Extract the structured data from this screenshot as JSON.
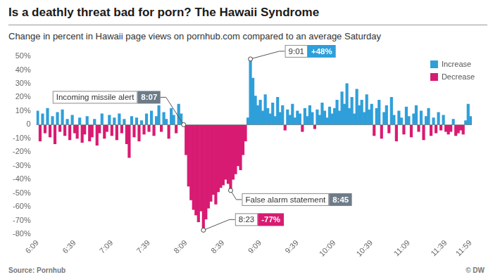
{
  "chart_data": {
    "type": "bar",
    "title": "Is a deathly threat bad for porn? The Hawaii Syndrome",
    "subtitle": "Change in percent in Hawaii page views on pornhub.com compared to an average Saturday",
    "source": "Source: Pornhub",
    "credit": "© DW",
    "categories": [
      "6:09",
      null,
      null,
      null,
      null,
      null,
      null,
      null,
      null,
      null,
      null,
      null,
      null,
      null,
      null,
      "6:39",
      null,
      null,
      null,
      null,
      null,
      null,
      null,
      null,
      null,
      null,
      null,
      null,
      null,
      null,
      "7:09",
      null,
      null,
      null,
      null,
      null,
      null,
      null,
      null,
      null,
      null,
      null,
      null,
      null,
      null,
      "7:39",
      null,
      null,
      null,
      null,
      null,
      null,
      null,
      null,
      null,
      null,
      null,
      null,
      null,
      null,
      "8:09",
      null,
      null,
      null,
      null,
      null,
      null,
      null,
      null,
      null,
      null,
      null,
      null,
      null,
      null,
      "8:39",
      null,
      null,
      null,
      null,
      null,
      null,
      null,
      null,
      null,
      null,
      null,
      null,
      null,
      null,
      "9:09",
      null,
      null,
      null,
      null,
      null,
      null,
      null,
      null,
      null,
      null,
      null,
      null,
      null,
      null,
      "9:39",
      null,
      null,
      null,
      null,
      null,
      null,
      null,
      null,
      null,
      null,
      null,
      null,
      null,
      null,
      "10:09",
      null,
      null,
      null,
      null,
      null,
      null,
      null,
      null,
      null,
      null,
      null,
      null,
      null,
      null,
      "10:39",
      null,
      null,
      null,
      null,
      null,
      null,
      null,
      null,
      null,
      null,
      null,
      null,
      null,
      null,
      "11:09",
      null,
      null,
      null,
      null,
      null,
      null,
      null,
      null,
      null,
      null,
      null,
      null,
      null,
      null,
      "11:39",
      null,
      null,
      null,
      null,
      null,
      null,
      null,
      null,
      null,
      "11:59"
    ],
    "series": [
      {
        "name": "Increase",
        "color": "#2f9fda",
        "values": [
          10,
          null,
          8,
          null,
          12,
          null,
          6,
          null,
          9,
          null,
          11,
          null,
          4,
          null,
          7,
          null,
          null,
          5,
          null,
          null,
          6,
          null,
          null,
          4,
          null,
          null,
          8,
          null,
          null,
          7,
          null,
          5,
          null,
          8,
          null,
          4,
          null,
          null,
          6,
          null,
          5,
          null,
          3,
          null,
          8,
          null,
          10,
          null,
          6,
          14,
          null,
          9,
          4,
          null,
          12,
          7,
          null,
          15,
          8,
          0,
          null,
          null,
          null,
          null,
          null,
          null,
          null,
          null,
          null,
          null,
          null,
          null,
          null,
          null,
          null,
          null,
          null,
          null,
          null,
          null,
          null,
          null,
          null,
          null,
          null,
          5,
          48,
          34,
          21,
          14,
          18,
          10,
          22,
          12,
          8,
          16,
          6,
          20,
          9,
          14,
          null,
          11,
          7,
          15,
          5,
          10,
          8,
          null,
          12,
          6,
          14,
          9,
          null,
          11,
          7,
          16,
          10,
          5,
          13,
          8,
          12,
          18,
          10,
          24,
          15,
          30,
          12,
          20,
          8,
          26,
          14,
          18,
          9,
          22,
          11,
          15,
          null,
          12,
          18,
          null,
          9,
          14,
          null,
          20,
          7,
          null,
          10,
          5,
          null,
          13,
          6,
          null,
          8,
          14,
          null,
          10,
          null,
          6,
          12,
          null,
          5,
          null,
          9,
          null,
          7,
          null,
          null,
          null,
          4,
          null,
          null,
          null,
          null,
          3,
          15,
          6
        ]
      },
      {
        "name": "Decrease",
        "color": "#d81b72",
        "values": [
          null,
          -12,
          null,
          -6,
          null,
          -9,
          null,
          -14,
          null,
          -5,
          null,
          -8,
          null,
          -11,
          null,
          -6,
          -10,
          null,
          -13,
          -7,
          null,
          -12,
          -9,
          null,
          -15,
          -6,
          null,
          -10,
          -5,
          null,
          -8,
          null,
          -11,
          null,
          -6,
          null,
          -14,
          -24,
          null,
          -9,
          null,
          -12,
          null,
          -7,
          null,
          -5,
          null,
          -8,
          null,
          null,
          -5,
          null,
          null,
          -10,
          null,
          null,
          -6,
          null,
          null,
          null,
          -22,
          -45,
          -55,
          -62,
          -66,
          -71,
          -63,
          -77,
          -69,
          -61,
          -56,
          -51,
          -58,
          -49,
          -46,
          -44,
          -40,
          -43,
          -48,
          -40,
          -36,
          -30,
          -33,
          -22,
          -12,
          null,
          null,
          null,
          null,
          null,
          null,
          null,
          null,
          null,
          null,
          null,
          null,
          null,
          null,
          null,
          -4,
          null,
          null,
          null,
          null,
          null,
          null,
          -5,
          null,
          null,
          null,
          null,
          -3,
          null,
          null,
          null,
          null,
          null,
          null,
          null,
          null,
          null,
          null,
          null,
          null,
          null,
          null,
          null,
          null,
          null,
          null,
          null,
          null,
          null,
          null,
          null,
          -8,
          null,
          null,
          -10,
          null,
          null,
          -6,
          null,
          null,
          -12,
          null,
          null,
          -7,
          null,
          null,
          -9,
          null,
          null,
          -5,
          null,
          -11,
          null,
          null,
          -8,
          null,
          -6,
          null,
          -4,
          null,
          -5,
          -7,
          -5,
          null,
          -8,
          -6,
          -4,
          -7,
          null,
          null,
          null
        ]
      }
    ],
    "ylim": [
      -80,
      50
    ],
    "yticks": [
      {
        "value": -80,
        "label": "-80%"
      },
      {
        "value": -70,
        "label": "-70%"
      },
      {
        "value": -60,
        "label": "-60%"
      },
      {
        "value": -50,
        "label": "-50%"
      },
      {
        "value": -40,
        "label": "-40%"
      },
      {
        "value": -30,
        "label": "-30%"
      },
      {
        "value": -20,
        "label": "-20%"
      },
      {
        "value": -10,
        "label": "-10%"
      },
      0,
      {
        "value": 10,
        "label": "10%"
      },
      {
        "value": 20,
        "label": "20%"
      },
      {
        "value": 30,
        "label": "30%"
      },
      {
        "value": 40,
        "label": "40%"
      },
      {
        "value": 50,
        "label": "50%"
      }
    ],
    "grid": false,
    "legend": "upper right",
    "annotations": [
      {
        "text": "Incoming missile alert",
        "time": "8:07"
      },
      {
        "time": "9:01",
        "value": 48,
        "value_label": "+48%"
      },
      {
        "text": "False alarm statement",
        "time": "8:45"
      },
      {
        "time": "8:23",
        "value": -77,
        "value_label": "-77%"
      }
    ]
  }
}
